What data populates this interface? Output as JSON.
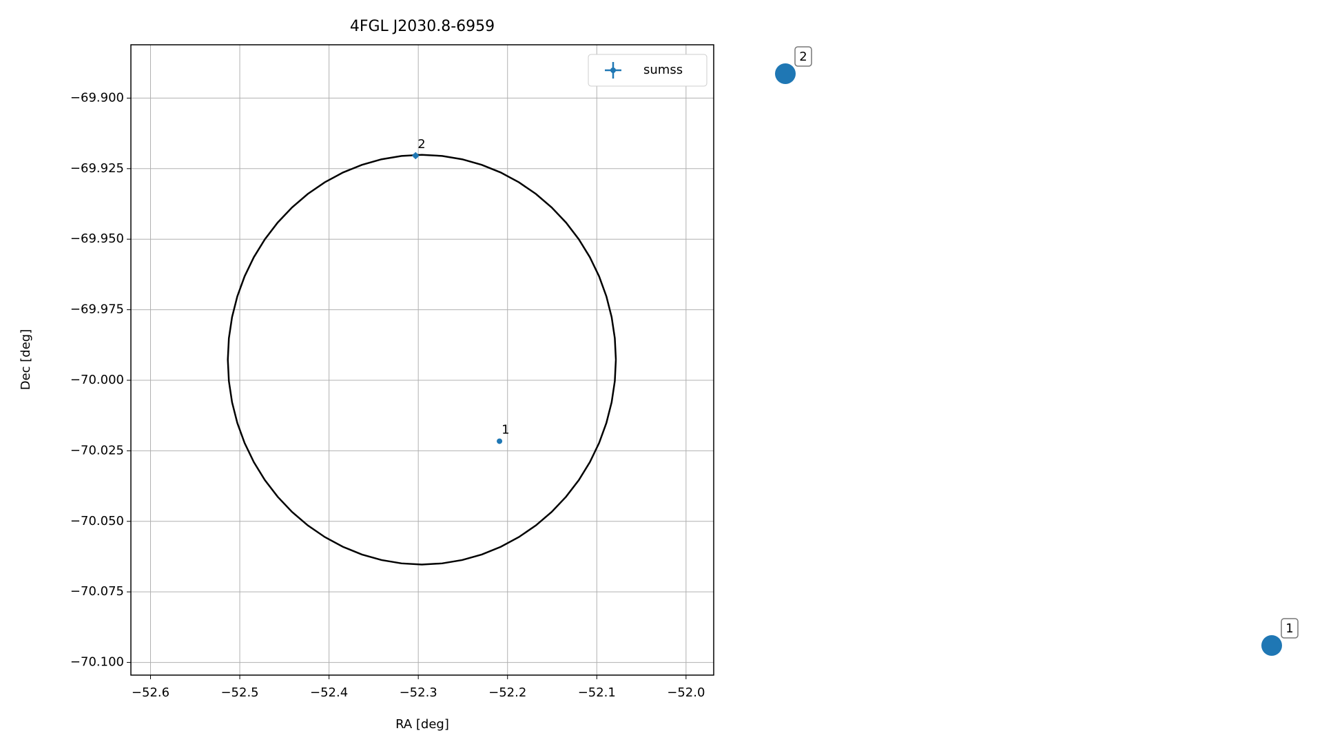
{
  "chart_data": {
    "type": "scatter",
    "title": "4FGL J2030.8-6959",
    "x_label": "RA [deg]",
    "y_label": "Dec [deg]",
    "xlim": [
      -52.622,
      -51.969
    ],
    "ylim": [
      -70.1045,
      -69.8811
    ],
    "xticks": [
      {
        "value": -52.6,
        "label": "−52.6"
      },
      {
        "value": -52.5,
        "label": "−52.5"
      },
      {
        "value": -52.4,
        "label": "−52.4"
      },
      {
        "value": -52.3,
        "label": "−52.3"
      },
      {
        "value": -52.2,
        "label": "−52.2"
      },
      {
        "value": -52.1,
        "label": "−52.1"
      },
      {
        "value": -52.0,
        "label": "−52.0"
      }
    ],
    "yticks": [
      {
        "value": -69.9,
        "label": "−69.900"
      },
      {
        "value": -69.925,
        "label": "−69.925"
      },
      {
        "value": -69.95,
        "label": "−69.950"
      },
      {
        "value": -69.975,
        "label": "−69.975"
      },
      {
        "value": -70.0,
        "label": "−70.000"
      },
      {
        "value": -70.025,
        "label": "−70.025"
      },
      {
        "value": -70.05,
        "label": "−70.050"
      },
      {
        "value": -70.075,
        "label": "−70.075"
      },
      {
        "value": -70.1,
        "label": "−70.100"
      }
    ],
    "grid": true,
    "legend": "upper right",
    "series": [
      {
        "name": "sumss",
        "color": "#1f77b4",
        "x": [
          -52.209,
          -52.303
        ],
        "values": [
          -70.0216,
          -69.9204
        ],
        "xerr": [
          0.0005,
          0.0038
        ],
        "yerr": [
          0.0002,
          0.0012
        ],
        "point_labels": [
          "1",
          "2"
        ]
      }
    ],
    "ellipse": {
      "color": "#000000",
      "center_ra": -52.296,
      "center_dec": -69.9927,
      "radius_ra": 0.2174,
      "radius_dec": 0.0726
    },
    "outside_markers": [
      "2",
      "1"
    ]
  }
}
